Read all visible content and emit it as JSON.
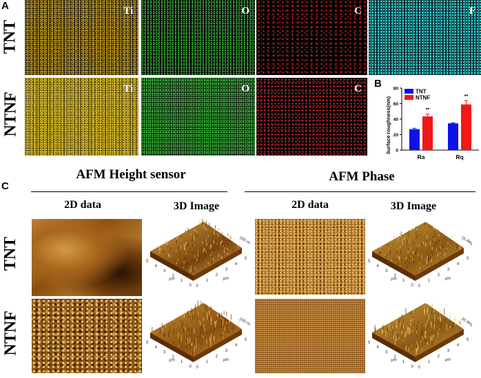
{
  "panels": {
    "a": "A",
    "b": "B",
    "c": "C"
  },
  "rows": {
    "tnt": "TNT",
    "ntnf": "NTNF"
  },
  "eds": {
    "tnt": [
      "Ti",
      "O",
      "C",
      "F"
    ],
    "ntnf": [
      "Ti",
      "O",
      "C"
    ],
    "colors": {
      "Ti": "#c9a021",
      "O": "#3cb43c",
      "C": "#e02020",
      "F": "#3fd8d8"
    }
  },
  "afm": {
    "height_title": "AFM Height sensor",
    "phase_title": "AFM Phase",
    "col_2d": "2D data",
    "col_3d": "3D Image",
    "unit": "μm",
    "ticks": [
      "0",
      "1",
      "2",
      "3",
      "4",
      "5"
    ],
    "scales": {
      "height_tnt": "100 nm/div",
      "phase_tnt": "15 deg/div",
      "height_ntnf": "100 nm/div",
      "phase_ntnf": "20 deg/div"
    }
  },
  "chart_data": {
    "type": "bar",
    "categories": [
      "Ra",
      "Rq"
    ],
    "ylabel": "Surface roughness(nm)",
    "ylim": [
      0,
      80
    ],
    "yticks": [
      0,
      20,
      40,
      60,
      80
    ],
    "legend": "top-left",
    "series": [
      {
        "name": "TNT",
        "color": "#1010e8",
        "values": [
          27,
          34.5
        ],
        "errors": [
          1.2,
          0.8
        ],
        "annotations": [
          "",
          ""
        ]
      },
      {
        "name": "NTNF",
        "color": "#f01818",
        "values": [
          43.5,
          59
        ],
        "errors": [
          3,
          5
        ],
        "annotations": [
          "**",
          "**"
        ]
      }
    ]
  }
}
